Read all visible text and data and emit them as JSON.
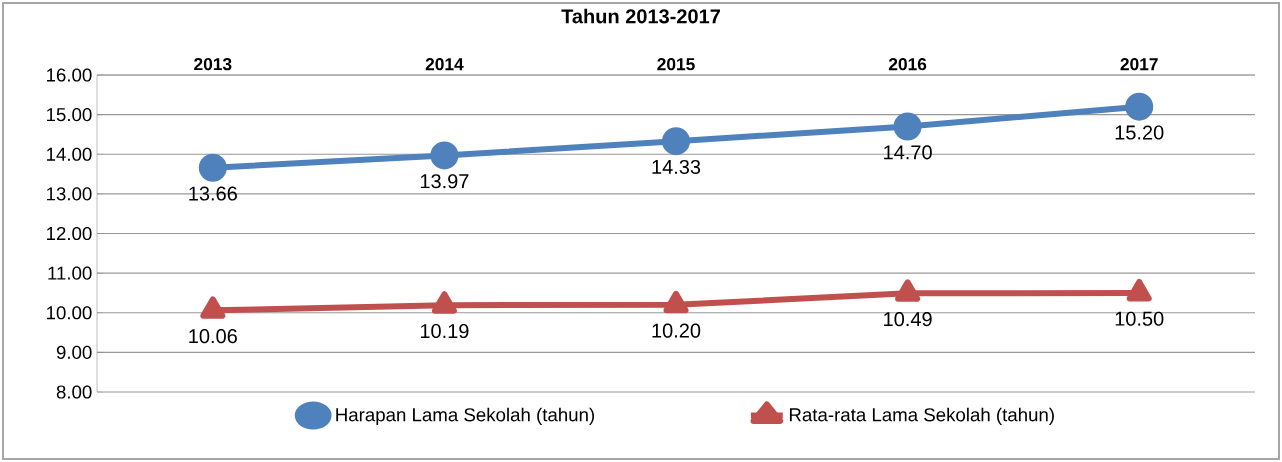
{
  "chart_data": {
    "type": "line",
    "title": "Tahun 2013-2017",
    "categories": [
      "2013",
      "2014",
      "2015",
      "2016",
      "2017"
    ],
    "series": [
      {
        "name": "Harapan Lama Sekolah (tahun)",
        "color": "#4f81bd",
        "marker": "circle",
        "values": [
          13.66,
          13.97,
          14.33,
          14.7,
          15.2
        ],
        "value_labels": [
          "13.66",
          "13.97",
          "14.33",
          "14.70",
          "15.20"
        ]
      },
      {
        "name": "Rata-rata Lama Sekolah (tahun)",
        "color": "#c0504d",
        "marker": "triangle",
        "values": [
          10.06,
          10.19,
          10.2,
          10.49,
          10.5
        ],
        "value_labels": [
          "10.06",
          "10.19",
          "10.20",
          "10.49",
          "10.50"
        ]
      }
    ],
    "ylim": [
      8,
      16
    ],
    "yticks": [
      {
        "value": 8,
        "label": "8.00"
      },
      {
        "value": 9,
        "label": "9.00"
      },
      {
        "value": 10,
        "label": "10.00"
      },
      {
        "value": 11,
        "label": "11.00"
      },
      {
        "value": 12,
        "label": "12.00"
      },
      {
        "value": 13,
        "label": "13.00"
      },
      {
        "value": 14,
        "label": "14.00"
      },
      {
        "value": 15,
        "label": "15.00"
      },
      {
        "value": 16,
        "label": "16.00"
      }
    ],
    "grid": "y",
    "legend": "bottom",
    "line_style": "solid"
  }
}
